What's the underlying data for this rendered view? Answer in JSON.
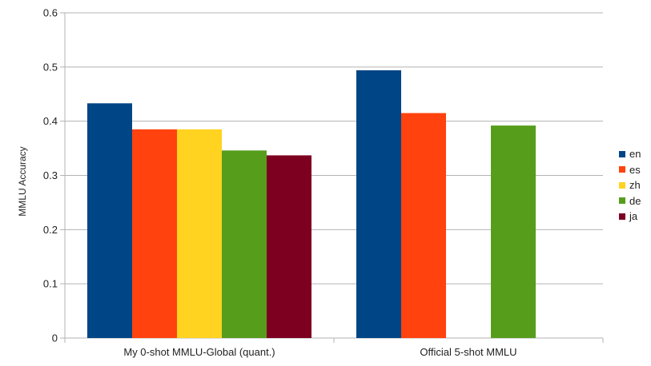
{
  "chart_data": {
    "type": "bar",
    "title": "",
    "xlabel": "",
    "ylabel": "MMLU Accuracy",
    "ylim": [
      0,
      0.6
    ],
    "yticks": [
      "0",
      "0.1",
      "0.2",
      "0.3",
      "0.4",
      "0.5",
      "0.6"
    ],
    "grid": true,
    "legend_position": "right",
    "categories": [
      "My 0-shot MMLU-Global (quant.)",
      "Official 5-shot MMLU"
    ],
    "series": [
      {
        "name": "en",
        "color": "#004586",
        "values": [
          0.433,
          0.494
        ]
      },
      {
        "name": "es",
        "color": "#ff420e",
        "values": [
          0.385,
          0.415
        ]
      },
      {
        "name": "zh",
        "color": "#ffd320",
        "values": [
          0.385,
          null
        ]
      },
      {
        "name": "de",
        "color": "#579d1c",
        "values": [
          0.346,
          0.392
        ]
      },
      {
        "name": "ja",
        "color": "#7e0021",
        "values": [
          0.337,
          null
        ]
      }
    ]
  }
}
